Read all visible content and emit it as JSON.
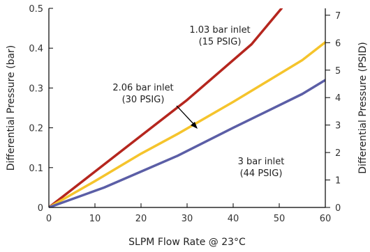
{
  "chart_data": {
    "type": "line",
    "xlabel": "SLPM Flow Rate @ 23°C",
    "ylabel": "Differential Pressure (bar)",
    "y2label": "Differential Pressure (PSID)",
    "xlim": [
      0,
      60
    ],
    "ylim": [
      0,
      0.5
    ],
    "y2lim": [
      0,
      7.25
    ],
    "xticks": [
      0,
      10,
      20,
      30,
      40,
      50,
      60
    ],
    "yticks": [
      0,
      0.1,
      0.2,
      0.3,
      0.4,
      0.5
    ],
    "yticklabels": [
      "0",
      "0.1",
      "0.2",
      "0.3",
      "0.4",
      "0.5"
    ],
    "y2ticks": [
      0,
      1,
      2,
      3,
      4,
      5,
      6,
      7
    ],
    "grid": false,
    "series": [
      {
        "name": "1.03 bar inlet (15 PSIG)",
        "color": "#b5261e",
        "x": [
          0,
          10,
          20,
          30,
          44,
          50.5
        ],
        "y": [
          0,
          0.09,
          0.18,
          0.27,
          0.41,
          0.5
        ]
      },
      {
        "name": "2.06 bar inlet (30 PSIG)",
        "color": "#f5c42c",
        "x": [
          0,
          10,
          20,
          28,
          40,
          55,
          60
        ],
        "y": [
          0,
          0.066,
          0.135,
          0.185,
          0.265,
          0.37,
          0.415
        ]
      },
      {
        "name": "3 bar inlet (44 PSIG)",
        "color": "#5b5ea6",
        "x": [
          0,
          12,
          20,
          28,
          40,
          55,
          60
        ],
        "y": [
          0,
          0.05,
          0.09,
          0.13,
          0.2,
          0.285,
          0.32
        ]
      }
    ],
    "annotations": [
      {
        "lines": [
          "1.03 bar inlet",
          "(15 PSIG)"
        ]
      },
      {
        "lines": [
          "2.06 bar inlet",
          "(30 PSIG)"
        ]
      },
      {
        "lines": [
          "3 bar inlet",
          "(44 PSIG)"
        ]
      }
    ]
  }
}
